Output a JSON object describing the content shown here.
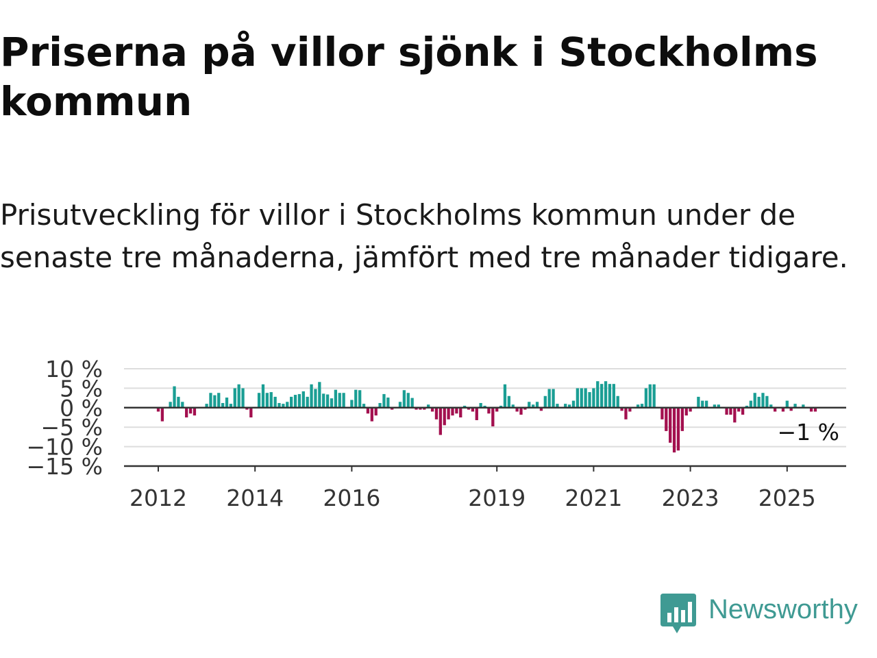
{
  "title": "Priserna på villor sjönk i Stockholms kommun",
  "subtitle": "Prisutveckling för villor i Stockholms kommun under de senaste tre månaderna, jämfört med tre månader tidigare.",
  "brand": {
    "name": "Newsworthy",
    "color": "#3f9a93",
    "icon": "bar-chart-speech-bubble-icon"
  },
  "colors": {
    "positive": "#1a9e94",
    "negative": "#a3104f",
    "grid": "#dddddd",
    "axis": "#333333"
  },
  "chart_data": {
    "type": "bar",
    "grid": true,
    "ylim": [
      -15,
      10
    ],
    "yticks": [
      {
        "value": 10,
        "label": "10 %"
      },
      {
        "value": 5,
        "label": "5 %"
      },
      {
        "value": 0,
        "label": "0 %"
      },
      {
        "value": -5,
        "label": "−5 %"
      },
      {
        "value": -10,
        "label": "−10 %"
      },
      {
        "value": -15,
        "label": "−15 %"
      }
    ],
    "xticks": [
      {
        "value": 2012,
        "label": "2012"
      },
      {
        "value": 2014,
        "label": "2014"
      },
      {
        "value": 2016,
        "label": "2016"
      },
      {
        "value": 2019,
        "label": "2019"
      },
      {
        "value": 2021,
        "label": "2021"
      },
      {
        "value": 2023,
        "label": "2023"
      },
      {
        "value": 2025,
        "label": "2025"
      }
    ],
    "start": "2012-01",
    "values": [
      -1,
      -3.5,
      0,
      1.5,
      5.5,
      2.8,
      1.5,
      -2.5,
      -1.5,
      -2,
      0,
      0,
      1,
      3.8,
      3.2,
      3.8,
      1.2,
      2.6,
      1,
      5,
      6,
      5,
      -0.5,
      -2.5,
      0,
      3.8,
      6,
      3.8,
      4,
      2.8,
      1.2,
      1,
      1.5,
      2.8,
      3.3,
      3.5,
      4.2,
      2.8,
      6,
      4.8,
      6.6,
      3.6,
      3.4,
      2.4,
      4.6,
      3.8,
      3.8,
      0,
      2,
      4.6,
      4.5,
      1,
      -1.5,
      -3.5,
      -2,
      1.2,
      3.5,
      2.6,
      -0.5,
      0,
      1.5,
      4.5,
      3.8,
      2.5,
      -0.5,
      -0.5,
      -0.5,
      0.8,
      -1,
      -3,
      -7,
      -4.5,
      -3,
      -2,
      -1.5,
      -2.5,
      0.5,
      -0.5,
      -1,
      -3.2,
      1.2,
      0.5,
      -1.5,
      -4.8,
      -1,
      0.5,
      6,
      3,
      0.8,
      -1,
      -1.8,
      -0.5,
      1.5,
      0.8,
      1.5,
      -0.8,
      3,
      4.8,
      4.8,
      1,
      0,
      1,
      0.8,
      1.8,
      5,
      5,
      5,
      4,
      5,
      6.8,
      6.1,
      6.8,
      6.1,
      6.1,
      3,
      -0.8,
      -3,
      -1,
      0,
      0.8,
      1,
      5,
      6,
      6,
      0,
      -3,
      -6,
      -9,
      -11.5,
      -11,
      -6,
      -2,
      -1,
      0,
      2.8,
      1.8,
      1.8,
      0,
      0.8,
      0.8,
      0,
      -1.8,
      -1.8,
      -3.8,
      -1,
      -1.8,
      0.5,
      1.8,
      3.8,
      2.8,
      3.8,
      3,
      0.8,
      -1,
      0,
      -1,
      1.8,
      -0.8,
      1,
      0,
      0.8,
      0,
      -1,
      -1
    ],
    "end_label": "−1 %"
  }
}
